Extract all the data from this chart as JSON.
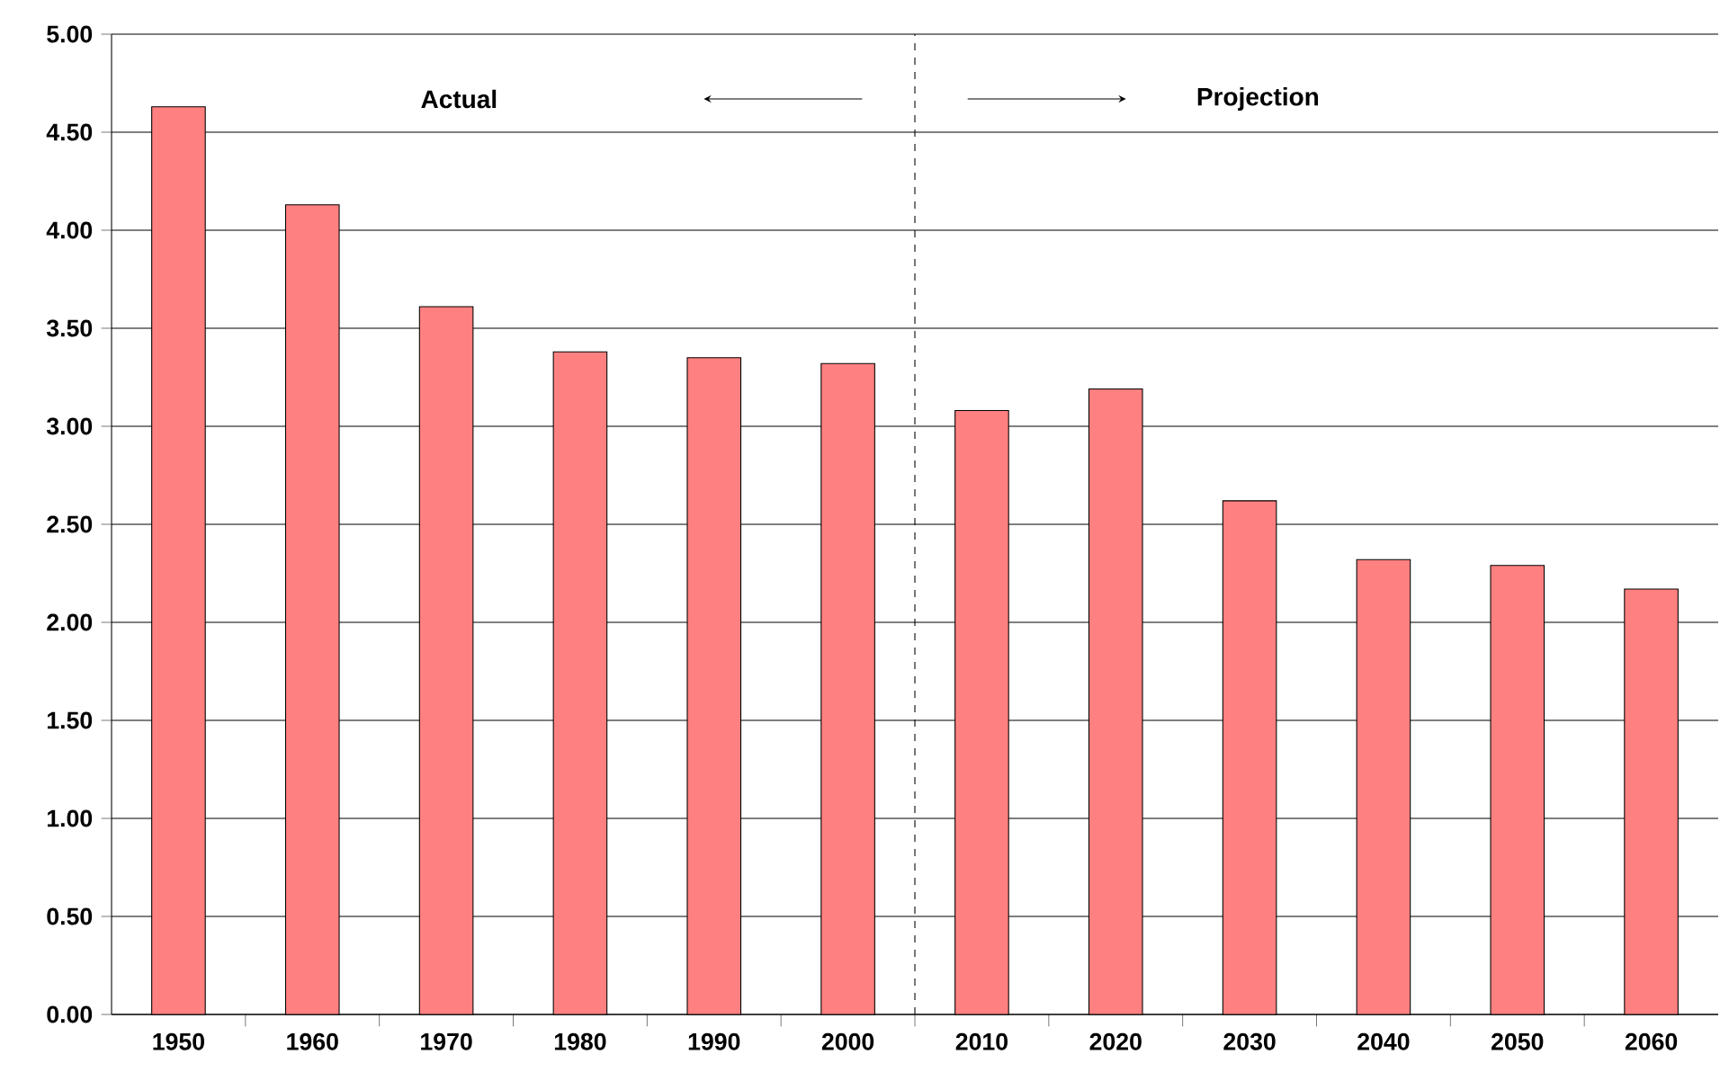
{
  "chart_data": {
    "type": "bar",
    "x": [
      1950,
      1960,
      1970,
      1980,
      1990,
      2000,
      2010,
      2020,
      2030,
      2040,
      2050,
      2060
    ],
    "values": [
      4.63,
      4.13,
      3.61,
      3.38,
      3.35,
      3.32,
      3.08,
      3.19,
      2.62,
      2.32,
      2.29,
      2.17
    ],
    "color": "#ff8080",
    "xlim": [
      1945,
      2065
    ],
    "xticks": [
      1950,
      1960,
      1970,
      1980,
      1990,
      2000,
      2010,
      2020,
      2030,
      2040,
      2050,
      2060
    ],
    "ylim": [
      0,
      5
    ],
    "yticks": [
      {
        "value": 0,
        "label": "0.00"
      },
      {
        "value": 0.5,
        "label": "0.50"
      },
      {
        "value": 1,
        "label": "1.00"
      },
      {
        "value": 1.5,
        "label": "1.50"
      },
      {
        "value": 2,
        "label": "2.00"
      },
      {
        "value": 2.5,
        "label": "2.50"
      },
      {
        "value": 3,
        "label": "3.00"
      },
      {
        "value": 3.5,
        "label": "3.50"
      },
      {
        "value": 4,
        "label": "4.00"
      },
      {
        "value": 4.5,
        "label": "4.50"
      },
      {
        "value": 5,
        "label": "5.00"
      }
    ],
    "grid": "y",
    "ref_lines": [
      {
        "axis": "x",
        "value": 2005,
        "line_style": "dashed",
        "color": "#000000"
      }
    ],
    "annotations": [
      "Actual",
      "Projection"
    ]
  }
}
